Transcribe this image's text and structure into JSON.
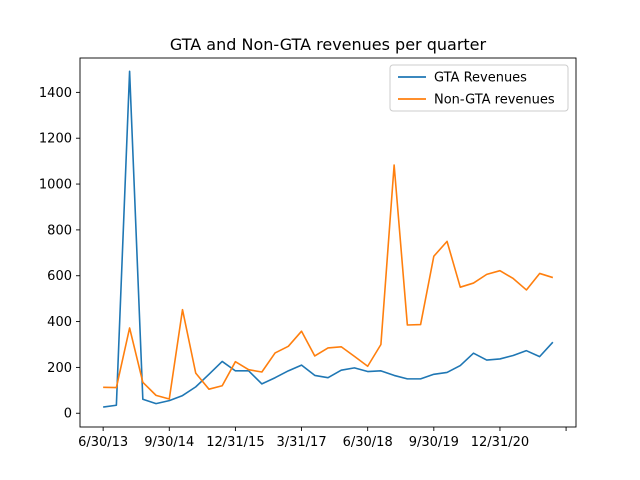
{
  "chart_data": {
    "type": "line",
    "title": "GTA and Non-GTA revenues per quarter",
    "xlabel": "",
    "ylabel": "",
    "ylim": [
      -60,
      1550
    ],
    "y_ticks": [
      0,
      200,
      400,
      600,
      800,
      1000,
      1200,
      1400
    ],
    "x_tick_labels": [
      "6/30/13",
      "9/30/14",
      "12/31/15",
      "3/31/17",
      "6/30/18",
      "9/30/19",
      "12/31/20",
      ""
    ],
    "x_tick_step": 5,
    "legend": {
      "placement": "top-right"
    },
    "grid": false,
    "series": [
      {
        "name": "GTA Revenues",
        "color": "#1f77b4",
        "values": [
          27,
          35,
          1492,
          61,
          42,
          55,
          77,
          115,
          170,
          226,
          185,
          185,
          128,
          155,
          185,
          210,
          165,
          155,
          188,
          198,
          182,
          185,
          165,
          150,
          150,
          170,
          178,
          208,
          262,
          232,
          237,
          252,
          273,
          247,
          310
        ]
      },
      {
        "name": "Non-GTA revenues",
        "color": "#ff7f0e",
        "values": [
          113,
          112,
          372,
          135,
          78,
          62,
          452,
          175,
          105,
          120,
          225,
          190,
          180,
          263,
          292,
          358,
          250,
          285,
          290,
          248,
          205,
          300,
          1083,
          385,
          387,
          685,
          750,
          550,
          568,
          606,
          622,
          588,
          538,
          610,
          592
        ]
      }
    ]
  }
}
